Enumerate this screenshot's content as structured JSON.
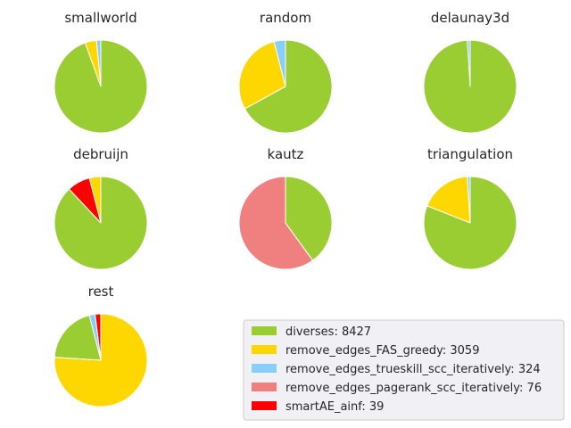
{
  "chart_data": {
    "type": "pie",
    "start_angle_deg": 90,
    "direction": "counterclockwise",
    "colors": {
      "diverses": "#9acd32",
      "remove_edges_FAS_greedy": "#ffd700",
      "remove_edges_trueskill_scc_iteratively": "#87cefa",
      "remove_edges_pagerank_scc_iteratively": "#f08080",
      "smartAE_ainf": "#ff0000"
    },
    "legend": {
      "placement": "bottom-right",
      "entries": [
        {
          "key": "diverses",
          "label": "diverses: 8427"
        },
        {
          "key": "remove_edges_FAS_greedy",
          "label": "remove_edges_FAS_greedy: 3059"
        },
        {
          "key": "remove_edges_trueskill_scc_iteratively",
          "label": "remove_edges_trueskill_scc_iteratively: 324"
        },
        {
          "key": "remove_edges_pagerank_scc_iteratively",
          "label": "remove_edges_pagerank_scc_iteratively: 76"
        },
        {
          "key": "smartAE_ainf",
          "label": "smartAE_ainf: 39"
        }
      ]
    },
    "pies": [
      {
        "title": "smallworld",
        "slices": [
          {
            "key": "smartAE_ainf",
            "value": 0
          },
          {
            "key": "remove_edges_trueskill_scc_iteratively",
            "value": 1.5
          },
          {
            "key": "remove_edges_FAS_greedy",
            "value": 4
          },
          {
            "key": "diverses",
            "value": 94.5
          }
        ]
      },
      {
        "title": "random",
        "slices": [
          {
            "key": "remove_edges_trueskill_scc_iteratively",
            "value": 4
          },
          {
            "key": "remove_edges_FAS_greedy",
            "value": 29
          },
          {
            "key": "diverses",
            "value": 67
          }
        ]
      },
      {
        "title": "delaunay3d",
        "slices": [
          {
            "key": "remove_edges_trueskill_scc_iteratively",
            "value": 1
          },
          {
            "key": "diverses",
            "value": 99
          }
        ]
      },
      {
        "title": "debruijn",
        "slices": [
          {
            "key": "remove_edges_FAS_greedy",
            "value": 4
          },
          {
            "key": "smartAE_ainf",
            "value": 8
          },
          {
            "key": "diverses",
            "value": 88
          }
        ]
      },
      {
        "title": "kautz",
        "slices": [
          {
            "key": "remove_edges_pagerank_scc_iteratively",
            "value": 60
          },
          {
            "key": "diverses",
            "value": 40
          }
        ]
      },
      {
        "title": "triangulation",
        "slices": [
          {
            "key": "remove_edges_trueskill_scc_iteratively",
            "value": 1
          },
          {
            "key": "remove_edges_FAS_greedy",
            "value": 18
          },
          {
            "key": "diverses",
            "value": 81
          }
        ]
      },
      {
        "title": "rest",
        "slices": [
          {
            "key": "smartAE_ainf",
            "value": 2
          },
          {
            "key": "remove_edges_trueskill_scc_iteratively",
            "value": 2
          },
          {
            "key": "diverses",
            "value": 20
          },
          {
            "key": "remove_edges_FAS_greedy",
            "value": 76
          }
        ]
      }
    ]
  }
}
